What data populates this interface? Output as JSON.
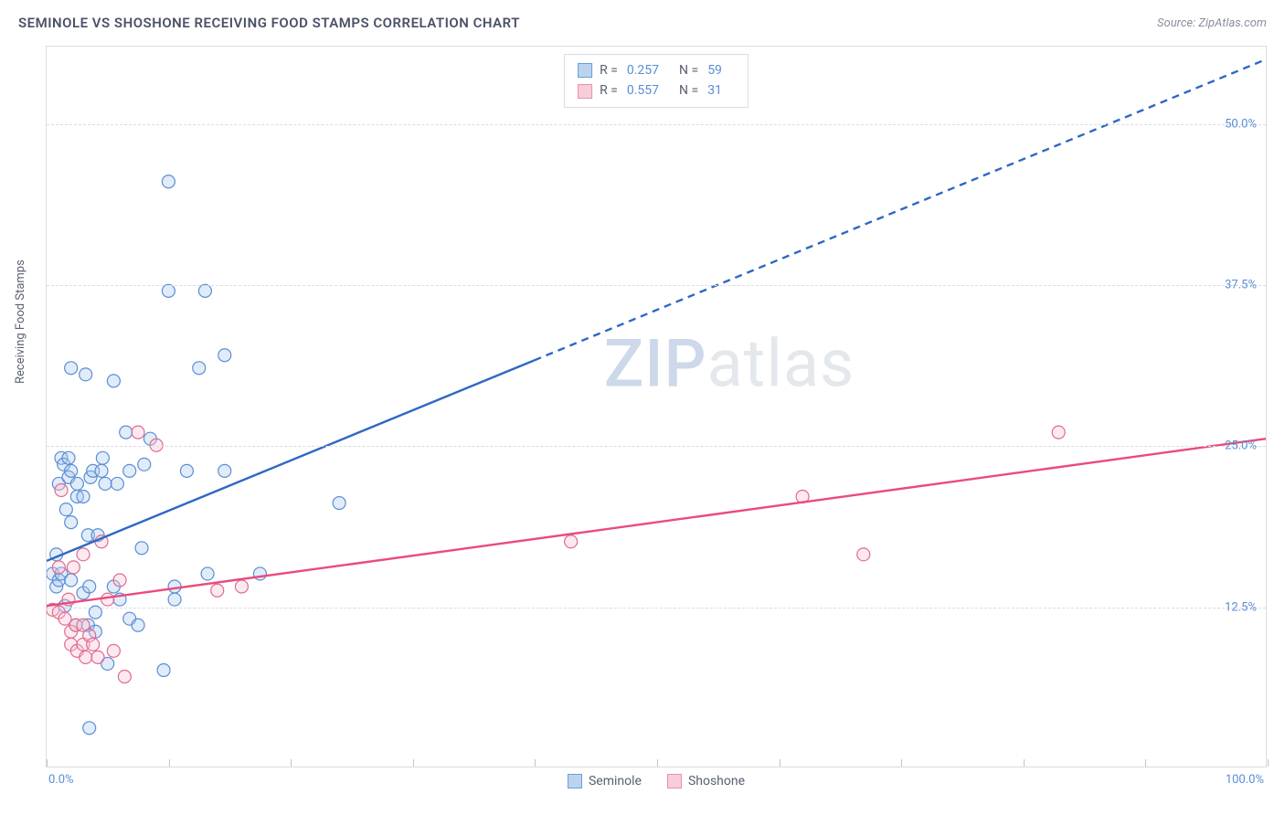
{
  "title": "SEMINOLE VS SHOSHONE RECEIVING FOOD STAMPS CORRELATION CHART",
  "source": "Source: ZipAtlas.com",
  "y_axis_label": "Receiving Food Stamps",
  "watermark": {
    "part1": "ZIP",
    "part2": "atlas"
  },
  "chart": {
    "type": "scatter",
    "background_color": "#ffffff",
    "border_color": "#d8dce4",
    "grid_color": "#d8dce4",
    "grid_style": "dashed",
    "xlim": [
      0,
      100
    ],
    "ylim": [
      0,
      56
    ],
    "y_ticks": [
      12.5,
      25.0,
      37.5,
      50.0
    ],
    "y_tick_labels": [
      "12.5%",
      "25.0%",
      "37.5%",
      "50.0%"
    ],
    "x_ticks": [
      0,
      10,
      20,
      30,
      40,
      50,
      60,
      70,
      80,
      90,
      100
    ],
    "x_tick_left_label": "0.0%",
    "x_tick_right_label": "100.0%",
    "tick_label_color": "#5a8dd6",
    "tick_label_fontsize": 13,
    "marker_radius": 7,
    "marker_stroke_width": 1.2,
    "marker_fill_opacity": 0.35
  },
  "series": [
    {
      "id": "seminole",
      "label": "Seminole",
      "R": "0.257",
      "N": "59",
      "swatch_fill": "#bcd3f0",
      "swatch_border": "#6a9cd8",
      "marker_fill": "#a9c9ee",
      "marker_stroke": "#5a8dd6",
      "line_color": "#2f68c4",
      "line_width": 2.4,
      "line_solid_end_x": 40,
      "trend_start": {
        "x": 0,
        "y": 16
      },
      "trend_end": {
        "x": 100,
        "y": 55
      },
      "points": [
        {
          "x": 0.5,
          "y": 15
        },
        {
          "x": 0.8,
          "y": 14
        },
        {
          "x": 0.8,
          "y": 16.5
        },
        {
          "x": 1,
          "y": 14.5
        },
        {
          "x": 1,
          "y": 22
        },
        {
          "x": 1.2,
          "y": 15
        },
        {
          "x": 1.2,
          "y": 24
        },
        {
          "x": 1.4,
          "y": 23.5
        },
        {
          "x": 1.5,
          "y": 12.5
        },
        {
          "x": 1.6,
          "y": 20
        },
        {
          "x": 1.8,
          "y": 22.5
        },
        {
          "x": 1.8,
          "y": 24
        },
        {
          "x": 2,
          "y": 14.5
        },
        {
          "x": 2,
          "y": 19
        },
        {
          "x": 2,
          "y": 23
        },
        {
          "x": 2,
          "y": 31
        },
        {
          "x": 2.4,
          "y": 11
        },
        {
          "x": 2.5,
          "y": 21
        },
        {
          "x": 2.5,
          "y": 22
        },
        {
          "x": 3,
          "y": 13.5
        },
        {
          "x": 3,
          "y": 21
        },
        {
          "x": 3.2,
          "y": 30.5
        },
        {
          "x": 3.4,
          "y": 11
        },
        {
          "x": 3.4,
          "y": 18
        },
        {
          "x": 3.5,
          "y": 3
        },
        {
          "x": 3.5,
          "y": 14
        },
        {
          "x": 3.6,
          "y": 22.5
        },
        {
          "x": 3.8,
          "y": 23
        },
        {
          "x": 4,
          "y": 10.5
        },
        {
          "x": 4,
          "y": 12
        },
        {
          "x": 4.2,
          "y": 18
        },
        {
          "x": 4.5,
          "y": 23
        },
        {
          "x": 4.6,
          "y": 24
        },
        {
          "x": 4.8,
          "y": 22
        },
        {
          "x": 5,
          "y": 8
        },
        {
          "x": 5.5,
          "y": 14
        },
        {
          "x": 5.5,
          "y": 30
        },
        {
          "x": 5.8,
          "y": 22
        },
        {
          "x": 6,
          "y": 13
        },
        {
          "x": 6.5,
          "y": 26
        },
        {
          "x": 6.8,
          "y": 11.5
        },
        {
          "x": 6.8,
          "y": 23
        },
        {
          "x": 7.5,
          "y": 11
        },
        {
          "x": 7.8,
          "y": 17
        },
        {
          "x": 8,
          "y": 23.5
        },
        {
          "x": 8.5,
          "y": 25.5
        },
        {
          "x": 9.6,
          "y": 7.5
        },
        {
          "x": 10,
          "y": 37
        },
        {
          "x": 10,
          "y": 45.5
        },
        {
          "x": 10.5,
          "y": 13
        },
        {
          "x": 10.5,
          "y": 14
        },
        {
          "x": 11.5,
          "y": 23
        },
        {
          "x": 12.5,
          "y": 31
        },
        {
          "x": 13,
          "y": 37
        },
        {
          "x": 13.2,
          "y": 15
        },
        {
          "x": 14.6,
          "y": 23
        },
        {
          "x": 14.6,
          "y": 32
        },
        {
          "x": 17.5,
          "y": 15
        },
        {
          "x": 24,
          "y": 20.5
        }
      ]
    },
    {
      "id": "shoshone",
      "label": "Shoshone",
      "R": "0.557",
      "N": "31",
      "swatch_fill": "#f7cdd9",
      "swatch_border": "#e492aa",
      "marker_fill": "#f5c4d3",
      "marker_stroke": "#e16b8e",
      "line_color": "#e94b7a",
      "line_width": 2.4,
      "line_solid_end_x": 100,
      "trend_start": {
        "x": 0,
        "y": 12.5
      },
      "trend_end": {
        "x": 100,
        "y": 25.5
      },
      "points": [
        {
          "x": 0.5,
          "y": 12.2
        },
        {
          "x": 1,
          "y": 12
        },
        {
          "x": 1,
          "y": 15.5
        },
        {
          "x": 1.2,
          "y": 21.5
        },
        {
          "x": 1.5,
          "y": 11.5
        },
        {
          "x": 1.8,
          "y": 13
        },
        {
          "x": 2,
          "y": 9.5
        },
        {
          "x": 2,
          "y": 10.5
        },
        {
          "x": 2.2,
          "y": 15.5
        },
        {
          "x": 2.4,
          "y": 11
        },
        {
          "x": 2.5,
          "y": 9
        },
        {
          "x": 3,
          "y": 9.5
        },
        {
          "x": 3,
          "y": 11
        },
        {
          "x": 3,
          "y": 16.5
        },
        {
          "x": 3.2,
          "y": 8.5
        },
        {
          "x": 3.5,
          "y": 10.2
        },
        {
          "x": 3.8,
          "y": 9.5
        },
        {
          "x": 4.2,
          "y": 8.5
        },
        {
          "x": 4.5,
          "y": 17.5
        },
        {
          "x": 5,
          "y": 13
        },
        {
          "x": 5.5,
          "y": 9
        },
        {
          "x": 6,
          "y": 14.5
        },
        {
          "x": 6.4,
          "y": 7
        },
        {
          "x": 7.5,
          "y": 26
        },
        {
          "x": 9,
          "y": 25
        },
        {
          "x": 14,
          "y": 13.7
        },
        {
          "x": 16,
          "y": 14
        },
        {
          "x": 43,
          "y": 17.5
        },
        {
          "x": 62,
          "y": 21
        },
        {
          "x": 67,
          "y": 16.5
        },
        {
          "x": 83,
          "y": 26
        }
      ]
    }
  ],
  "legend_top": {
    "R_label": "R =",
    "N_label": "N ="
  },
  "legend_bottom_labels": {
    "seminole": "Seminole",
    "shoshone": "Shoshone"
  }
}
